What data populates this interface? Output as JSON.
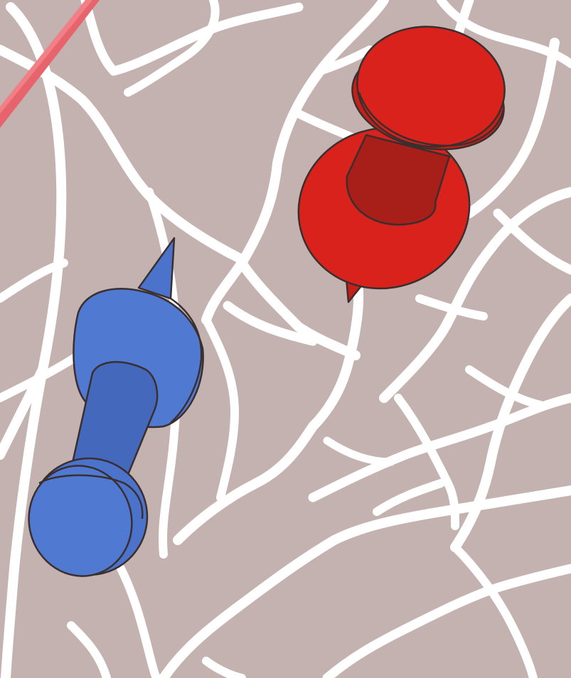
{
  "map": {
    "land_color": "#c4b2b1",
    "road_color": "#ffffff"
  },
  "pins": [
    {
      "name": "red-pushpin",
      "icon": "pushpin-icon",
      "color": "#d9221b",
      "shade": "#a81f1a"
    },
    {
      "name": "blue-pushpin",
      "icon": "pushpin-icon",
      "color": "#5079d2",
      "shade": "#4468bc"
    }
  ],
  "partial_marker": {
    "name": "partial-pin-needle",
    "color": "#f07f86"
  }
}
